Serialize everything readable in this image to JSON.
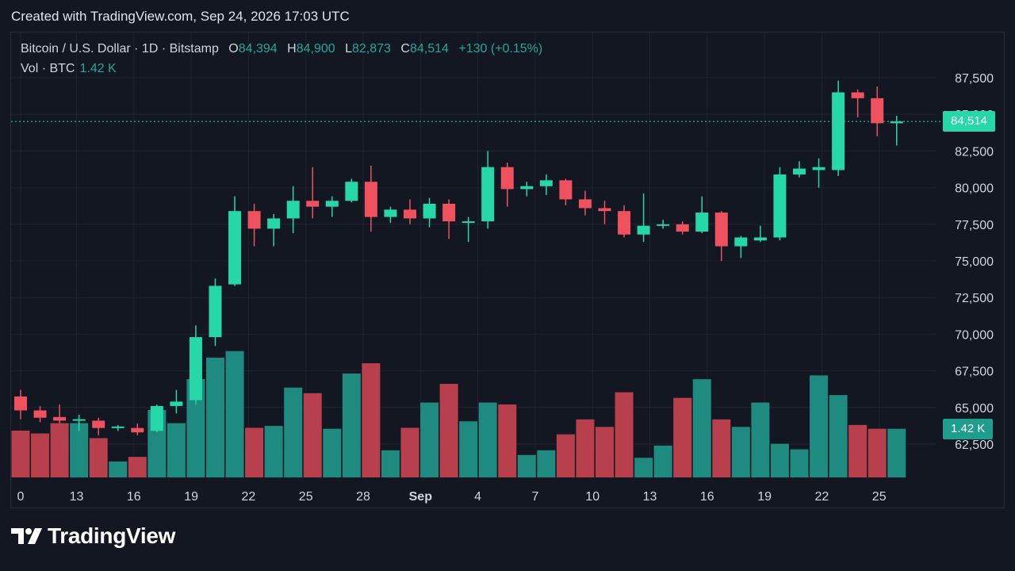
{
  "caption": "Created with TradingView.com, Sep 24, 2026 17:03 UTC",
  "legend": {
    "symbol": "Bitcoin / U.S. Dollar · 1D · Bitstamp",
    "o_label": "O",
    "o": "84,394",
    "h_label": "H",
    "h": "84,900",
    "l_label": "L",
    "l": "82,873",
    "c_label": "C",
    "c": "84,514",
    "change": "+130 (+0.15%)",
    "vol_label": "Vol · BTC",
    "vol": "1.42 K"
  },
  "price_badge": "84,514",
  "vol_badge": "1.42 K",
  "brand": "TradingView",
  "colors": {
    "up": "#26d8a8",
    "down": "#f0515f",
    "up_vol": "#1f8a80",
    "down_vol": "#b8404d",
    "bg": "#131722"
  },
  "chart_data": {
    "type": "candlestick",
    "y_axis_ticks": [
      "87,500",
      "85,000",
      "82,500",
      "80,000",
      "77,500",
      "75,000",
      "72,500",
      "70,000",
      "67,500",
      "65,000",
      "62,500"
    ],
    "x_axis_ticks": [
      "0",
      "13",
      "16",
      "19",
      "22",
      "25",
      "28",
      "Sep",
      "4",
      "7",
      "10",
      "13",
      "16",
      "19",
      "22",
      "25"
    ],
    "last_price": 84514,
    "ohlc": [
      [
        65750,
        66200,
        64200,
        64800
      ],
      [
        64800,
        65100,
        64000,
        64300
      ],
      [
        64350,
        65200,
        63900,
        64100
      ],
      [
        64100,
        64500,
        63400,
        64200
      ],
      [
        64100,
        64300,
        63100,
        63600
      ],
      [
        63600,
        63800,
        63400,
        63700
      ],
      [
        63600,
        63900,
        63100,
        63300
      ],
      [
        63400,
        65200,
        63300,
        65100
      ],
      [
        65100,
        66200,
        64600,
        65400
      ],
      [
        65500,
        70600,
        65200,
        69800
      ],
      [
        69800,
        73800,
        69200,
        73300
      ],
      [
        73400,
        79400,
        73300,
        78400
      ],
      [
        78400,
        78900,
        76000,
        77200
      ],
      [
        77200,
        78200,
        76000,
        77900
      ],
      [
        77900,
        80100,
        76900,
        79100
      ],
      [
        79100,
        81400,
        77900,
        78700
      ],
      [
        78700,
        79400,
        78000,
        79100
      ],
      [
        79100,
        80600,
        79000,
        80400
      ],
      [
        80400,
        81500,
        77000,
        78000
      ],
      [
        78000,
        78700,
        77600,
        78500
      ],
      [
        78500,
        79200,
        77500,
        77900
      ],
      [
        77900,
        79300,
        77300,
        78900
      ],
      [
        78900,
        79200,
        76500,
        77700
      ],
      [
        77700,
        78000,
        76300,
        77700
      ],
      [
        77700,
        82500,
        77200,
        81400
      ],
      [
        81400,
        81700,
        78700,
        79900
      ],
      [
        79900,
        80400,
        79400,
        80100
      ],
      [
        80100,
        80900,
        79500,
        80500
      ],
      [
        80500,
        80600,
        78800,
        79200
      ],
      [
        79200,
        79800,
        78100,
        78600
      ],
      [
        78600,
        79100,
        77500,
        78400
      ],
      [
        78400,
        78800,
        76600,
        76800
      ],
      [
        76800,
        79600,
        76300,
        77400
      ],
      [
        77400,
        77800,
        77200,
        77500
      ],
      [
        77500,
        77700,
        76800,
        77000
      ],
      [
        77000,
        79400,
        76900,
        78300
      ],
      [
        78300,
        78400,
        75000,
        76000
      ],
      [
        76000,
        76700,
        75200,
        76600
      ],
      [
        76400,
        77400,
        76300,
        76600
      ],
      [
        76600,
        81400,
        76400,
        80900
      ],
      [
        80900,
        81800,
        80700,
        81300
      ],
      [
        81200,
        82000,
        80000,
        81400
      ],
      [
        81200,
        87300,
        80800,
        86500
      ],
      [
        86500,
        86700,
        84800,
        86100
      ],
      [
        86100,
        86900,
        83500,
        84394
      ],
      [
        84394,
        84900,
        82873,
        84514
      ]
    ],
    "volume_rel": [
      0.5,
      0.47,
      0.58,
      0.58,
      0.42,
      0.17,
      0.22,
      0.72,
      0.58,
      1.05,
      1.28,
      1.35,
      0.53,
      0.55,
      0.96,
      0.9,
      0.52,
      1.11,
      1.22,
      0.29,
      0.53,
      0.8,
      1.0,
      0.6,
      0.8,
      0.78,
      0.24,
      0.29,
      0.46,
      0.62,
      0.54,
      0.91,
      0.21,
      0.34,
      0.85,
      1.05,
      0.62,
      0.54,
      0.8,
      0.36,
      0.3,
      1.09,
      0.88,
      0.56,
      0.52,
      0.52
    ]
  }
}
